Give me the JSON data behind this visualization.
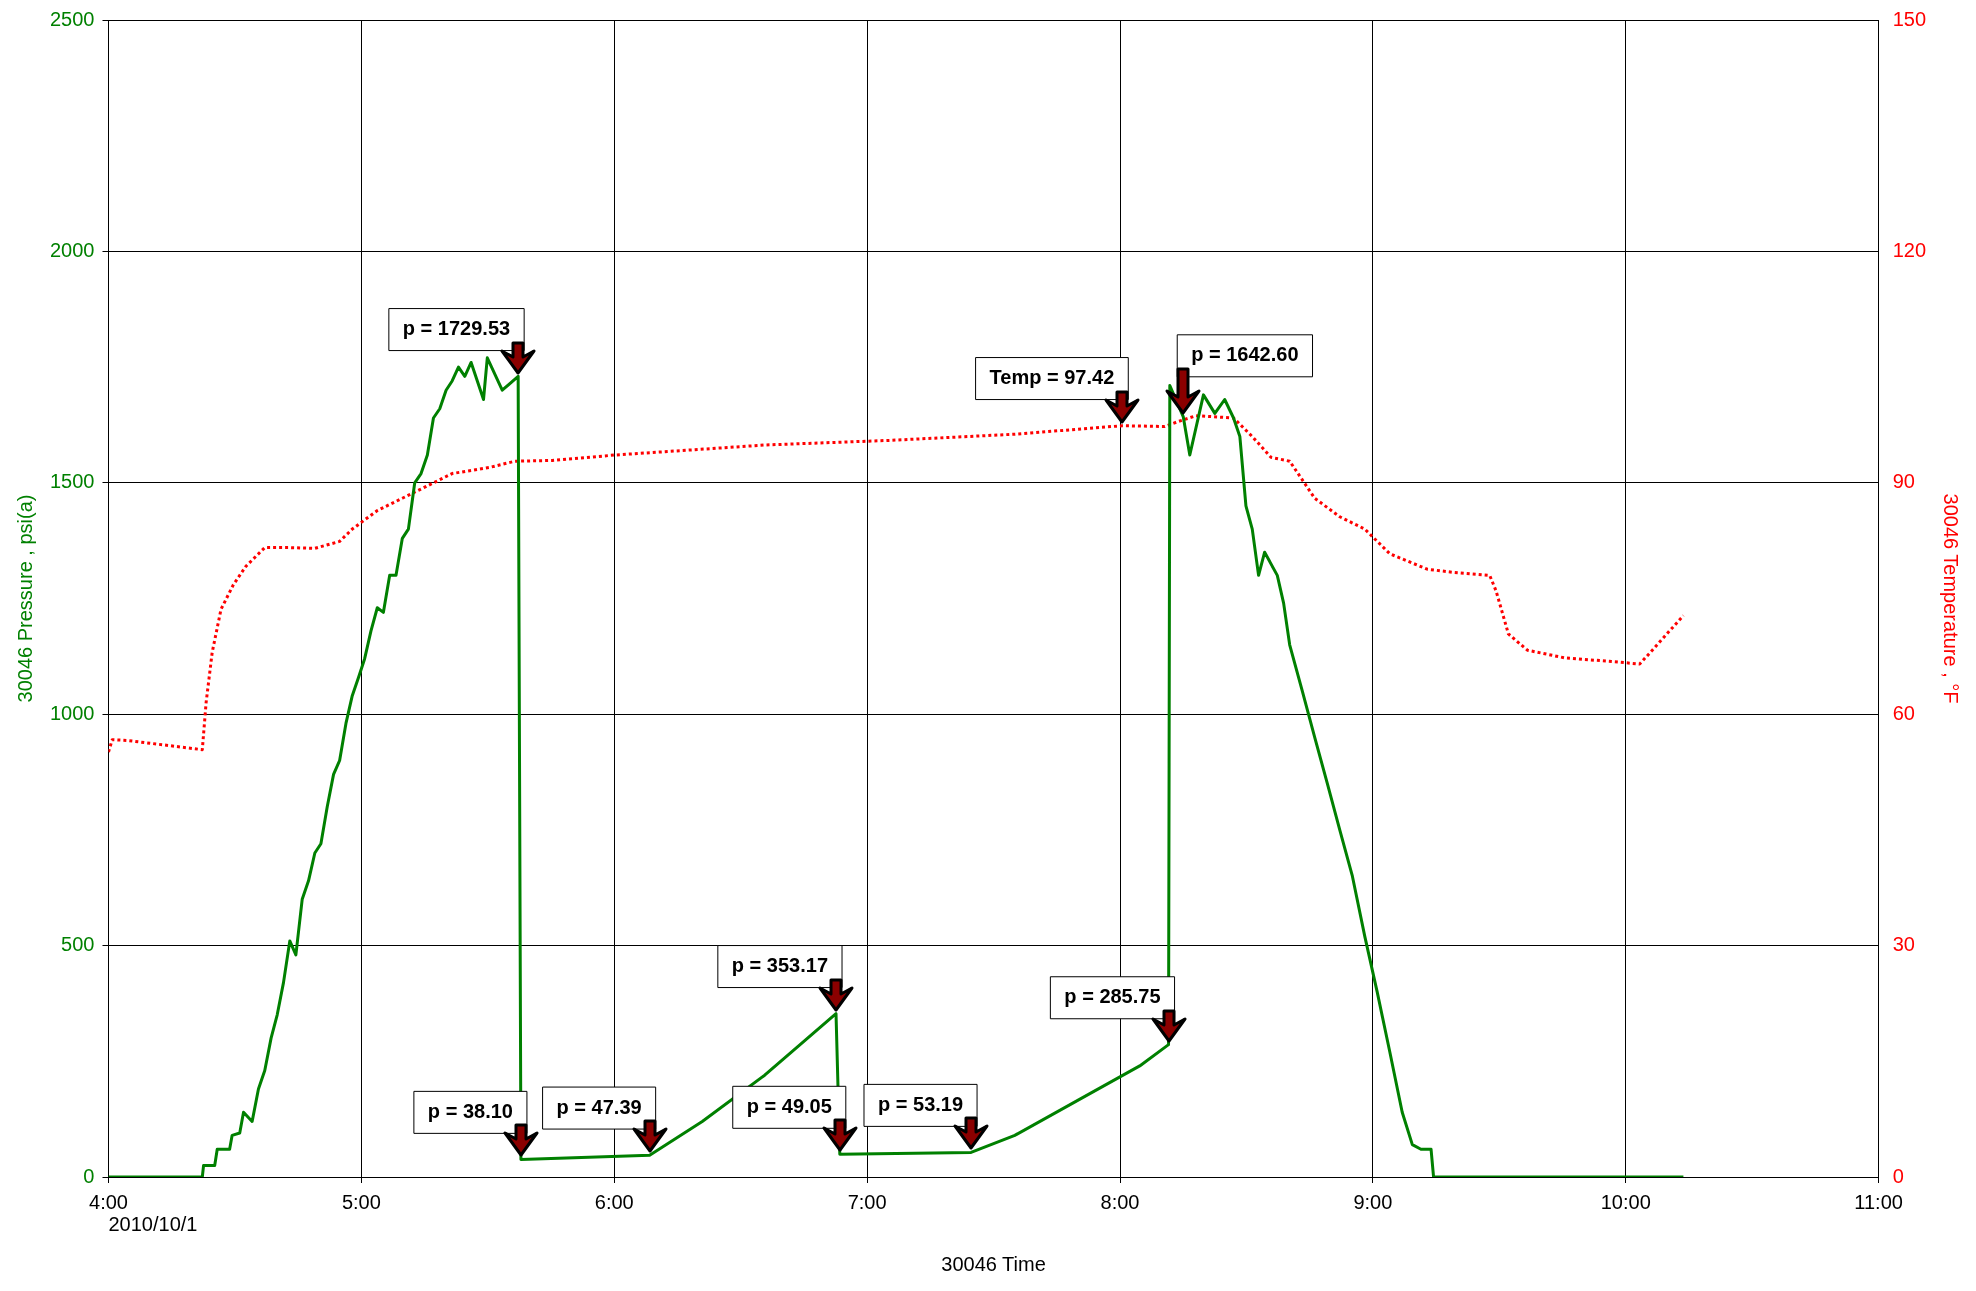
{
  "chart_data": {
    "type": "line",
    "xlabel": "30046 Time",
    "ylabel": "30046 Pressure , psi(a)",
    "y2label": "30046 Temperature , °F",
    "xlim": [
      4,
      11
    ],
    "xticks": [
      {
        "value": 4,
        "label": "4:00"
      },
      {
        "value": 5,
        "label": "5:00"
      },
      {
        "value": 6,
        "label": "6:00"
      },
      {
        "value": 7,
        "label": "7:00"
      },
      {
        "value": 8,
        "label": "8:00"
      },
      {
        "value": 9,
        "label": "9:00"
      },
      {
        "value": 10,
        "label": "10:00"
      },
      {
        "value": 11,
        "label": "11:00"
      }
    ],
    "ylim": [
      0,
      2500
    ],
    "yticks": [
      0,
      500,
      1000,
      1500,
      2000,
      2500
    ],
    "y2lim": [
      0,
      150
    ],
    "y2ticks": [
      0,
      30,
      60,
      90,
      120,
      150
    ],
    "grid": true,
    "legend": false,
    "marker": "none",
    "series": [
      {
        "color": "#008000",
        "line_style": "solid",
        "x": [
          4.0,
          4.371,
          4.376,
          4.42,
          4.43,
          4.479,
          4.489,
          4.519,
          4.534,
          4.568,
          4.593,
          4.618,
          4.643,
          4.667,
          4.692,
          4.717,
          4.741,
          4.766,
          4.791,
          4.816,
          4.84,
          4.865,
          4.89,
          4.914,
          4.939,
          4.964,
          4.989,
          5.013,
          5.038,
          5.063,
          5.087,
          5.112,
          5.137,
          5.162,
          5.186,
          5.211,
          5.236,
          5.261,
          5.285,
          5.31,
          5.335,
          5.359,
          5.384,
          5.409,
          5.434,
          5.483,
          5.498,
          5.557,
          5.62,
          5.631,
          6.14,
          6.348,
          6.595,
          6.743,
          6.877,
          6.892,
          7.411,
          7.584,
          7.831,
          8.078,
          8.192,
          8.197,
          8.25,
          8.276,
          8.33,
          8.375,
          8.414,
          8.449,
          8.474,
          8.498,
          8.523,
          8.548,
          8.572,
          8.622,
          8.647,
          8.671,
          8.721,
          8.77,
          8.82,
          8.869,
          8.919,
          8.968,
          9.017,
          9.067,
          9.116,
          9.156,
          9.19,
          9.23,
          9.24,
          10.228
        ],
        "values": [
          0,
          0,
          25,
          25,
          60,
          60,
          90,
          95,
          140,
          120,
          190,
          230,
          300,
          350,
          420,
          510,
          480,
          600,
          640,
          700,
          720,
          800,
          870,
          900,
          980,
          1040,
          1080,
          1120,
          1180,
          1230,
          1220,
          1300,
          1300,
          1380,
          1400,
          1500,
          1520,
          1560,
          1640,
          1660,
          1700,
          1720,
          1750,
          1730,
          1760,
          1680,
          1770,
          1700,
          1730,
          38,
          47,
          120,
          220,
          290,
          353,
          49,
          53,
          90,
          165,
          240,
          286,
          1710,
          1643,
          1560,
          1690,
          1650,
          1680,
          1640,
          1600,
          1450,
          1400,
          1300,
          1350,
          1300,
          1240,
          1150,
          1050,
          950,
          850,
          750,
          650,
          520,
          400,
          270,
          140,
          70,
          60,
          60,
          0,
          0
        ],
        "axis": "y"
      },
      {
        "color": "#ff0000",
        "line_style": "dotted",
        "x": [
          4.0,
          4.015,
          4.074,
          4.222,
          4.371,
          4.386,
          4.41,
          4.445,
          4.494,
          4.544,
          4.618,
          4.717,
          4.816,
          4.914,
          4.964,
          5.063,
          5.162,
          5.261,
          5.359,
          5.508,
          5.607,
          5.755,
          6.002,
          6.595,
          7.089,
          7.584,
          8.009,
          8.177,
          8.226,
          8.301,
          8.449,
          8.523,
          8.597,
          8.671,
          8.77,
          8.869,
          8.968,
          9.067,
          9.215,
          9.314,
          9.462,
          9.487,
          9.536,
          9.611,
          9.759,
          9.957,
          10.055,
          10.105,
          10.228
        ],
        "values": [
          55.1,
          56.7,
          56.6,
          56,
          55.4,
          61.5,
          68,
          73.6,
          76.8,
          79.2,
          81.6,
          81.6,
          81.5,
          82.4,
          84,
          86.4,
          88,
          89.6,
          91.2,
          92,
          92.8,
          92.9,
          93.6,
          94.9,
          95.5,
          96.3,
          97.4,
          97.3,
          97.9,
          98.7,
          98.4,
          96,
          93.3,
          92.8,
          88,
          85.6,
          84,
          80.8,
          78.8,
          78.4,
          78,
          76,
          70.4,
          68.3,
          67.3,
          66.8,
          66.5,
          68.3,
          72.8
        ],
        "axis": "y2"
      }
    ],
    "annotations": [
      {
        "text": "p = 1729.53",
        "x": 5.62,
        "y": 1729.53
      },
      {
        "text": "p = 38.10",
        "x": 5.631,
        "y": 38.1
      },
      {
        "text": "p = 47.39",
        "x": 6.14,
        "y": 47.39
      },
      {
        "text": "p = 353.17",
        "x": 6.877,
        "y": 353.17
      },
      {
        "text": "p = 49.05",
        "x": 6.892,
        "y": 49.05
      },
      {
        "text": "p = 53.19",
        "x": 7.411,
        "y": 53.19
      },
      {
        "text": "Temp = 97.42",
        "x": 8.009,
        "y": 1623.7
      },
      {
        "text": "p = 285.75",
        "x": 8.192,
        "y": 285.75
      },
      {
        "text": "p = 1642.60",
        "x": 8.25,
        "y": 1642.6
      },
      "2010/10/1"
    ]
  }
}
